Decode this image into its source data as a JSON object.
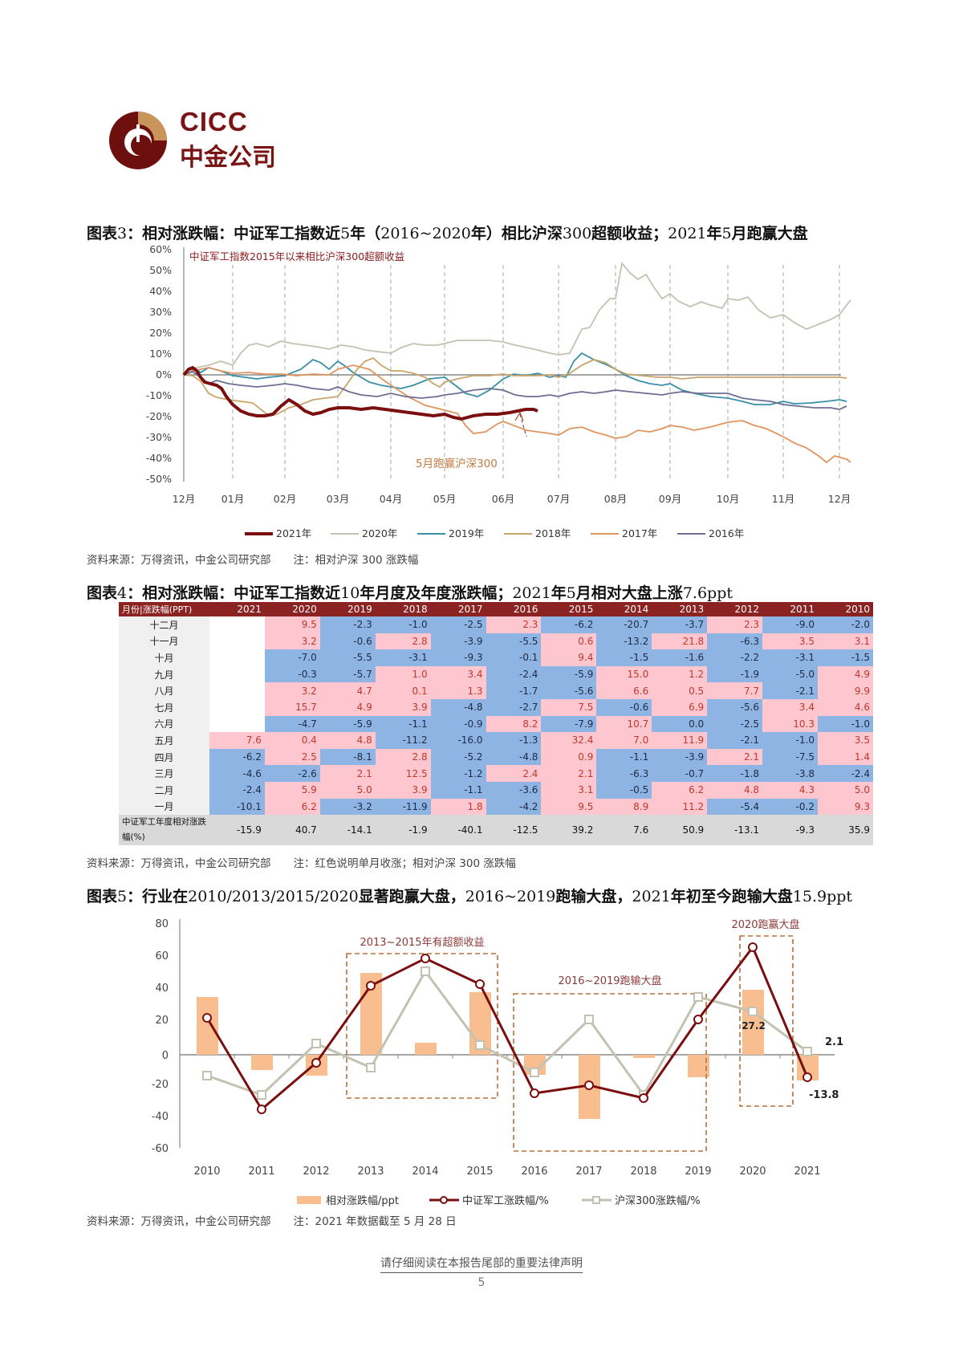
{
  "header": {
    "logo_en": "CICC",
    "logo_cn": "中金公司",
    "logo_colors": {
      "primary": "#6e0f0f",
      "accent": "#c9955a"
    }
  },
  "fig3": {
    "title_prefix": "图表",
    "title_num": "3",
    "title_parts": [
      "：相对涨跌幅：中证军工指数近",
      "5",
      "年（",
      "2016~2020",
      "年）相比沪深",
      "300",
      "超额收益；",
      "2021",
      "年",
      "5",
      "月跑赢大盘"
    ],
    "source": "资料来源：万得资讯，中金公司研究部",
    "note": "注：相对沪深 300 涨跌幅"
  },
  "fig4": {
    "title_prefix": "图表",
    "title_num": "4",
    "title_parts": [
      "：相对涨跌幅：中证军工指数近",
      "10",
      "年月度及年度涨跌幅；",
      "2021",
      "年",
      "5",
      "月相对大盘上涨",
      "7.6ppt"
    ],
    "source": "资料来源：万得资讯，中金公司研究部",
    "note": "注：红色说明单月收涨；相对沪深 300 涨跌幅"
  },
  "fig5": {
    "title_prefix": "图表",
    "title_num": "5",
    "title_parts": [
      "：行业在",
      "2010/2013/2015/2020",
      "显著跑赢大盘，",
      "2016~2019",
      "跑输大盘，",
      "2021",
      "年初至今跑输大盘",
      "15.9ppt"
    ],
    "source": "资料来源：万得资讯，中金公司研究部",
    "note": "注：2021 年数据截至 5 月 28 日"
  },
  "footer": {
    "disclaimer": "请仔细阅读在本报告尾部的重要法律声明",
    "page_number": "5"
  },
  "chart_data": [
    {
      "id": "fig3",
      "type": "line",
      "title": "中证军工指数2015年以来相比沪深300超额收益",
      "xlabel": "",
      "ylabel": "",
      "x": [
        "12月",
        "01月",
        "02月",
        "03月",
        "04月",
        "05月",
        "06月",
        "07月",
        "08月",
        "09月",
        "10月",
        "11月",
        "12月"
      ],
      "y_ticks": [
        "60%",
        "50%",
        "40%",
        "30%",
        "20%",
        "10%",
        "0%",
        "-10%",
        "-20%",
        "-30%",
        "-40%",
        "-50%"
      ],
      "ylim": [
        -50,
        60
      ],
      "grid": "vertical dashed",
      "legend_position": "bottom",
      "annotation": "5月跑赢沪深300",
      "series": [
        {
          "name": "2021年",
          "color": "#7b0f0f",
          "values": [
            0,
            -19,
            -17,
            -16,
            -18,
            -16
          ]
        },
        {
          "name": "2020年",
          "color": "#c3c2b1",
          "values": [
            0,
            8,
            16,
            11,
            12,
            12,
            4,
            25,
            45,
            35,
            34,
            26,
            42
          ]
        },
        {
          "name": "2019年",
          "color": "#3a8fa8",
          "values": [
            0,
            1,
            2,
            3,
            8,
            -2,
            -6,
            3,
            12,
            5,
            -10,
            -12,
            -14
          ]
        },
        {
          "name": "2018年",
          "color": "#c9a56b",
          "values": [
            0,
            -9,
            -14,
            -12,
            -8,
            -2,
            -9,
            2,
            10,
            5,
            -1,
            -2,
            -1
          ]
        },
        {
          "name": "2017年",
          "color": "#e09460",
          "values": [
            0,
            1,
            2,
            0,
            -2,
            -13,
            -23,
            -28,
            -26,
            -25,
            -30,
            -38,
            -40
          ]
        },
        {
          "name": "2016年",
          "color": "#6c6f92",
          "values": [
            0,
            -3,
            -1,
            -6,
            -8,
            -10,
            -5,
            -7,
            -6,
            -8,
            -9,
            -12,
            -13
          ]
        }
      ]
    },
    {
      "id": "fig4",
      "type": "table",
      "header_label": "月份|涨跌幅(PPT)",
      "columns": [
        "2021",
        "2020",
        "2019",
        "2018",
        "2017",
        "2016",
        "2015",
        "2014",
        "2013",
        "2012",
        "2011",
        "2010"
      ],
      "rows": [
        {
          "month": "十二月",
          "values": [
            "",
            "9.5",
            "-2.3",
            "-1.0",
            "-2.5",
            "2.3",
            "-6.2",
            "-20.7",
            "-3.7",
            "2.3",
            "-9.0",
            "-2.0"
          ]
        },
        {
          "month": "十一月",
          "values": [
            "",
            "3.2",
            "-0.6",
            "2.8",
            "-3.9",
            "-5.5",
            "0.6",
            "-13.2",
            "21.8",
            "-6.3",
            "3.5",
            "3.1"
          ]
        },
        {
          "month": "十月",
          "values": [
            "",
            "-7.0",
            "-5.5",
            "-3.1",
            "-9.3",
            "-0.1",
            "9.4",
            "-1.5",
            "-1.6",
            "-2.2",
            "-3.1",
            "-1.5"
          ]
        },
        {
          "month": "九月",
          "values": [
            "",
            "-0.3",
            "-5.7",
            "1.0",
            "3.4",
            "-2.4",
            "-5.9",
            "15.0",
            "1.2",
            "-1.9",
            "-5.0",
            "4.9"
          ]
        },
        {
          "month": "八月",
          "values": [
            "",
            "3.2",
            "4.7",
            "0.1",
            "1.3",
            "-1.7",
            "-5.6",
            "6.6",
            "0.5",
            "7.7",
            "-2.1",
            "9.9"
          ]
        },
        {
          "month": "七月",
          "values": [
            "",
            "15.7",
            "4.9",
            "3.9",
            "-4.8",
            "-2.7",
            "7.5",
            "-0.6",
            "6.9",
            "-5.6",
            "3.4",
            "4.6"
          ]
        },
        {
          "month": "六月",
          "values": [
            "",
            "-4.7",
            "-5.9",
            "-1.1",
            "-0.9",
            "8.2",
            "-7.9",
            "10.7",
            "0.0",
            "-2.5",
            "10.3",
            "-1.0"
          ]
        },
        {
          "month": "五月",
          "values": [
            "7.6",
            "0.4",
            "4.8",
            "-11.2",
            "-16.0",
            "-1.3",
            "32.4",
            "7.0",
            "11.9",
            "-2.1",
            "-1.0",
            "3.5"
          ]
        },
        {
          "month": "四月",
          "values": [
            "-6.2",
            "2.5",
            "-8.1",
            "2.8",
            "-5.2",
            "-4.8",
            "0.9",
            "-1.1",
            "-3.9",
            "2.1",
            "-7.5",
            "1.4"
          ]
        },
        {
          "month": "三月",
          "values": [
            "-4.6",
            "-2.6",
            "2.1",
            "12.5",
            "-1.2",
            "2.4",
            "2.1",
            "-6.3",
            "-0.7",
            "-1.8",
            "-3.8",
            "-2.4"
          ]
        },
        {
          "month": "二月",
          "values": [
            "-2.4",
            "5.9",
            "5.0",
            "3.9",
            "-1.1",
            "-3.6",
            "3.1",
            "-0.5",
            "6.2",
            "4.8",
            "4.3",
            "5.0"
          ]
        },
        {
          "month": "一月",
          "values": [
            "-10.1",
            "6.2",
            "-3.2",
            "-11.9",
            "1.8",
            "-4.2",
            "9.5",
            "8.9",
            "11.2",
            "-5.4",
            "-0.2",
            "9.3"
          ]
        }
      ],
      "total_row": {
        "label": "中证军工年度相对涨跌幅(%)",
        "values": [
          "-15.9",
          "40.7",
          "-14.1",
          "-1.9",
          "-40.1",
          "-12.5",
          "39.2",
          "7.6",
          "50.9",
          "-13.1",
          "-9.3",
          "35.9"
        ]
      },
      "colors": {
        "positive_bg": "#fec6cf",
        "negative_bg": "#8eb4e3",
        "header_bg": "#8b2323"
      }
    },
    {
      "id": "fig5",
      "type": "bar",
      "categories": [
        "2010",
        "2011",
        "2012",
        "2013",
        "2014",
        "2015",
        "2016",
        "2017",
        "2018",
        "2019",
        "2020",
        "2021"
      ],
      "ylim": [
        -60,
        80
      ],
      "y_ticks": [
        "80",
        "60",
        "40",
        "20",
        "0",
        "-20",
        "-40",
        "-60"
      ],
      "legend_position": "bottom",
      "series": [
        {
          "name": "相对涨跌幅/ppt",
          "type": "bar",
          "color": "#f9be8f",
          "values": [
            35.9,
            -9.3,
            -13.1,
            50.9,
            7.6,
            39.2,
            -12.5,
            -40.1,
            -1.9,
            -14.1,
            40.7,
            -15.9
          ]
        },
        {
          "name": "中证军工涨跌幅/%",
          "type": "line",
          "color": "#7b0f0f",
          "values": [
            23,
            -34,
            -5,
            43,
            60,
            44,
            -24,
            -19,
            -27,
            22,
            67,
            -13.8
          ]
        },
        {
          "name": "沪深300涨跌幅/%",
          "type": "line",
          "color": "#c3c2b1",
          "values": [
            -13,
            -25,
            7,
            -8,
            52,
            6,
            -11,
            22,
            -25,
            36,
            27.2,
            2.1
          ]
        }
      ],
      "annotations": [
        {
          "text": "2013~2015年有超额收益"
        },
        {
          "text": "2016~2019跑输大盘"
        },
        {
          "text": "2020跑赢大盘"
        },
        {
          "text": "27.2"
        },
        {
          "text": "2.1"
        },
        {
          "text": "-13.8"
        }
      ]
    }
  ]
}
